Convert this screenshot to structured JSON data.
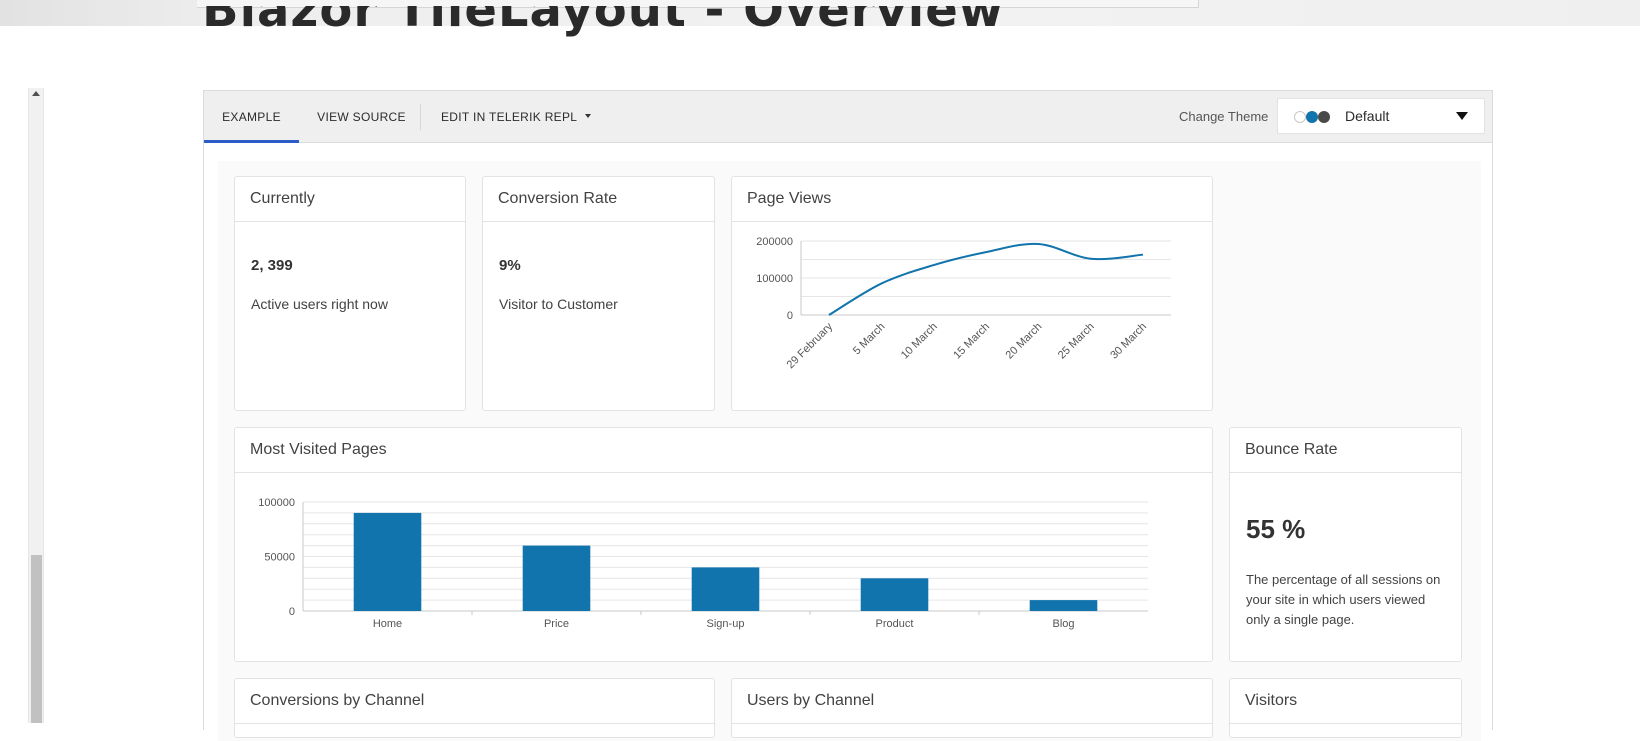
{
  "page": {
    "title": "Blazor TileLayout - Overview"
  },
  "toolbar": {
    "tabs": [
      {
        "label": "EXAMPLE",
        "active": true
      },
      {
        "label": "VIEW SOURCE",
        "active": false
      },
      {
        "label": "EDIT IN TELERIK REPL",
        "active": false
      }
    ],
    "change_theme_label": "Change Theme",
    "theme_selected": "Default",
    "theme_swatch_colors": [
      "#ffffff",
      "#1274ac",
      "#4a4a4a"
    ]
  },
  "tiles": {
    "currently": {
      "title": "Currently",
      "value": "2, 399",
      "caption": "Active users right now"
    },
    "conversion": {
      "title": "Conversion Rate",
      "value": "9%",
      "caption": "Visitor to Customer"
    },
    "page_views": {
      "title": "Page Views"
    },
    "most_visited": {
      "title": "Most Visited Pages"
    },
    "bounce": {
      "title": "Bounce Rate",
      "value": "55 %",
      "caption": "The percentage of all sessions on your site in which users viewed only a single page."
    },
    "conversions_by_channel": {
      "title": "Conversions by Channel"
    },
    "users_by_channel": {
      "title": "Users by Channel"
    },
    "visitors": {
      "title": "Visitors"
    }
  },
  "colors": {
    "series": "#1274ac",
    "tab_indicator": "#2c5cc5",
    "grid": "#e6e6e6",
    "axis": "#c8c8c8"
  },
  "chart_data": [
    {
      "type": "line",
      "title": "Page Views",
      "x": [
        "29 February",
        "5 March",
        "10 March",
        "15 March",
        "20 March",
        "25 March",
        "30 March"
      ],
      "series": [
        {
          "values": [
            0,
            85000,
            135000,
            170000,
            192000,
            152000,
            163000
          ]
        }
      ],
      "ylim": [
        0,
        200000
      ],
      "yticks": [
        0,
        100000,
        200000
      ],
      "grid": true,
      "smooth": true
    },
    {
      "type": "bar",
      "title": "Most Visited Pages",
      "categories": [
        "Home",
        "Price",
        "Sign-up",
        "Product",
        "Blog"
      ],
      "values": [
        90000,
        60000,
        40000,
        30000,
        10000
      ],
      "ylim": [
        0,
        100000
      ],
      "yticks": [
        0,
        50000,
        100000
      ],
      "grid": true
    }
  ]
}
